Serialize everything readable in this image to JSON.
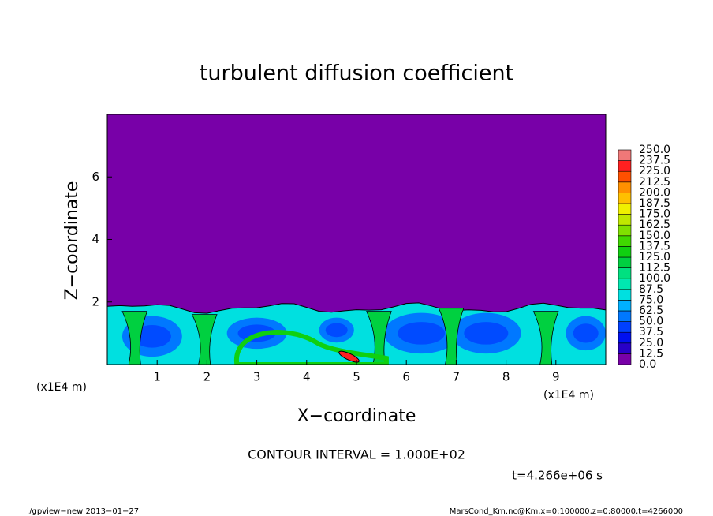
{
  "chart_data": {
    "type": "contour",
    "title": "turbulent diffusion coefficient",
    "xlabel": "X−coordinate",
    "ylabel": "Z−coordinate",
    "axis_unit": "(x1E4 m)",
    "xlim": [
      0,
      10
    ],
    "ylim": [
      0,
      8
    ],
    "xticks": [
      1,
      2,
      3,
      4,
      5,
      6,
      7,
      8,
      9
    ],
    "yticks": [
      2,
      4,
      6
    ],
    "levels": [
      {
        "value": 0,
        "label": "0.0"
      },
      12.5,
      {
        "value": 25,
        "label": "25.0"
      },
      37.5,
      {
        "value": 50,
        "label": "50.0"
      },
      62.5,
      {
        "value": 75,
        "label": "75.0"
      },
      87.5,
      {
        "value": 100,
        "label": "100.0"
      },
      112.5,
      {
        "value": 125,
        "label": "125.0"
      },
      137.5,
      {
        "value": 150,
        "label": "150.0"
      },
      162.5,
      {
        "value": 175,
        "label": "175.0"
      },
      187.5,
      {
        "value": 200,
        "label": "200.0"
      },
      212.5,
      {
        "value": 225,
        "label": "225.0"
      },
      237.5,
      {
        "value": 250,
        "label": "250.0"
      }
    ],
    "colors": [
      "#7800a8",
      "#2800c8",
      "#0010f0",
      "#0040ff",
      "#0078ff",
      "#00b0ff",
      "#00e0e0",
      "#00e8b0",
      "#00e080",
      "#00d040",
      "#10d010",
      "#40d800",
      "#80e000",
      "#c0e800",
      "#f0f000",
      "#ffc000",
      "#ff9000",
      "#ff5000",
      "#ff2020",
      "#f07878"
    ],
    "contour_interval": "CONTOUR INTERVAL = 1.000E+02",
    "time_label": "t=4.266e+06 s",
    "footer_left": "./gpview−new  2013−01−27",
    "footer_right": "MarsCond_Km.nc@Km,x=0:100000,z=0:80000,t=4266000"
  }
}
